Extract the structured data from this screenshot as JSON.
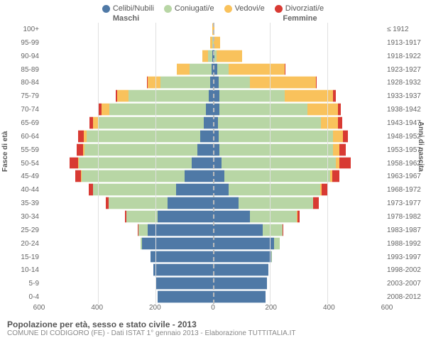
{
  "legend": [
    {
      "label": "Celibi/Nubili",
      "color": "#4f79a6"
    },
    {
      "label": "Coniugati/e",
      "color": "#b8d6a5"
    },
    {
      "label": "Vedovi/e",
      "color": "#f9c25c"
    },
    {
      "label": "Divorziati/e",
      "color": "#d83a33"
    }
  ],
  "header": {
    "male": "Maschi",
    "female": "Femmine"
  },
  "axis": {
    "left_title": "Fasce di età",
    "right_title": "Anni di nascita",
    "x_max": 600,
    "x_ticks": [
      600,
      400,
      200,
      0,
      200,
      400,
      600
    ]
  },
  "caption": {
    "title": "Popolazione per età, sesso e stato civile - 2013",
    "sub": "COMUNE DI CODIGORO (FE) - Dati ISTAT 1° gennaio 2013 - Elaborazione TUTTITALIA.IT"
  },
  "colors": {
    "celibe": "#4f79a6",
    "coniugato": "#b8d6a5",
    "vedovo": "#f9c25c",
    "divorziato": "#d83a33",
    "grid": "#e0e0e0",
    "center": "#bbbbbb"
  },
  "rows": [
    {
      "age": "100+",
      "birth": "≤ 1912",
      "m": {
        "c": 0,
        "co": 0,
        "v": 2,
        "d": 0
      },
      "f": {
        "c": 0,
        "co": 0,
        "v": 4,
        "d": 0
      }
    },
    {
      "age": "95-99",
      "birth": "1913-1917",
      "m": {
        "c": 0,
        "co": 3,
        "v": 6,
        "d": 0
      },
      "f": {
        "c": 1,
        "co": 1,
        "v": 22,
        "d": 0
      }
    },
    {
      "age": "90-94",
      "birth": "1918-1922",
      "m": {
        "c": 2,
        "co": 15,
        "v": 20,
        "d": 0
      },
      "f": {
        "c": 6,
        "co": 6,
        "v": 90,
        "d": 0
      }
    },
    {
      "age": "85-89",
      "birth": "1923-1927",
      "m": {
        "c": 6,
        "co": 75,
        "v": 45,
        "d": 0
      },
      "f": {
        "c": 16,
        "co": 40,
        "v": 195,
        "d": 2
      }
    },
    {
      "age": "80-84",
      "birth": "1928-1932",
      "m": {
        "c": 10,
        "co": 175,
        "v": 45,
        "d": 2
      },
      "f": {
        "c": 20,
        "co": 110,
        "v": 230,
        "d": 4
      }
    },
    {
      "age": "75-79",
      "birth": "1933-1937",
      "m": {
        "c": 16,
        "co": 280,
        "v": 40,
        "d": 6
      },
      "f": {
        "c": 22,
        "co": 230,
        "v": 170,
        "d": 8
      }
    },
    {
      "age": "70-74",
      "birth": "1938-1942",
      "m": {
        "c": 24,
        "co": 340,
        "v": 28,
        "d": 10
      },
      "f": {
        "c": 22,
        "co": 310,
        "v": 105,
        "d": 10
      }
    },
    {
      "age": "65-69",
      "birth": "1943-1947",
      "m": {
        "c": 32,
        "co": 370,
        "v": 18,
        "d": 14
      },
      "f": {
        "c": 18,
        "co": 360,
        "v": 60,
        "d": 14
      }
    },
    {
      "age": "60-64",
      "birth": "1948-1952",
      "m": {
        "c": 44,
        "co": 400,
        "v": 10,
        "d": 20
      },
      "f": {
        "c": 20,
        "co": 400,
        "v": 35,
        "d": 18
      }
    },
    {
      "age": "55-59",
      "birth": "1953-1957",
      "m": {
        "c": 55,
        "co": 395,
        "v": 6,
        "d": 22
      },
      "f": {
        "c": 22,
        "co": 400,
        "v": 22,
        "d": 22
      }
    },
    {
      "age": "50-54",
      "birth": "1958-1962",
      "m": {
        "c": 75,
        "co": 395,
        "v": 4,
        "d": 28
      },
      "f": {
        "c": 30,
        "co": 400,
        "v": 14,
        "d": 40
      }
    },
    {
      "age": "45-49",
      "birth": "1963-1967",
      "m": {
        "c": 100,
        "co": 360,
        "v": 2,
        "d": 22
      },
      "f": {
        "c": 40,
        "co": 370,
        "v": 8,
        "d": 26
      }
    },
    {
      "age": "40-44",
      "birth": "1968-1972",
      "m": {
        "c": 130,
        "co": 290,
        "v": 1,
        "d": 16
      },
      "f": {
        "c": 55,
        "co": 320,
        "v": 5,
        "d": 22
      }
    },
    {
      "age": "35-39",
      "birth": "1973-1977",
      "m": {
        "c": 160,
        "co": 205,
        "v": 0,
        "d": 12
      },
      "f": {
        "c": 90,
        "co": 260,
        "v": 2,
        "d": 18
      }
    },
    {
      "age": "30-34",
      "birth": "1978-1982",
      "m": {
        "c": 195,
        "co": 110,
        "v": 0,
        "d": 4
      },
      "f": {
        "c": 130,
        "co": 165,
        "v": 1,
        "d": 8
      }
    },
    {
      "age": "25-29",
      "birth": "1983-1987",
      "m": {
        "c": 230,
        "co": 32,
        "v": 0,
        "d": 1
      },
      "f": {
        "c": 175,
        "co": 70,
        "v": 0,
        "d": 2
      }
    },
    {
      "age": "20-24",
      "birth": "1988-1992",
      "m": {
        "c": 250,
        "co": 5,
        "v": 0,
        "d": 0
      },
      "f": {
        "c": 215,
        "co": 18,
        "v": 0,
        "d": 0
      }
    },
    {
      "age": "15-19",
      "birth": "1993-1997",
      "m": {
        "c": 220,
        "co": 0,
        "v": 0,
        "d": 0
      },
      "f": {
        "c": 205,
        "co": 2,
        "v": 0,
        "d": 0
      }
    },
    {
      "age": "10-14",
      "birth": "1998-2002",
      "m": {
        "c": 210,
        "co": 0,
        "v": 0,
        "d": 0
      },
      "f": {
        "c": 195,
        "co": 0,
        "v": 0,
        "d": 0
      }
    },
    {
      "age": "5-9",
      "birth": "2003-2007",
      "m": {
        "c": 200,
        "co": 0,
        "v": 0,
        "d": 0
      },
      "f": {
        "c": 190,
        "co": 0,
        "v": 0,
        "d": 0
      }
    },
    {
      "age": "0-4",
      "birth": "2008-2012",
      "m": {
        "c": 195,
        "co": 0,
        "v": 0,
        "d": 0
      },
      "f": {
        "c": 185,
        "co": 0,
        "v": 0,
        "d": 0
      }
    }
  ]
}
